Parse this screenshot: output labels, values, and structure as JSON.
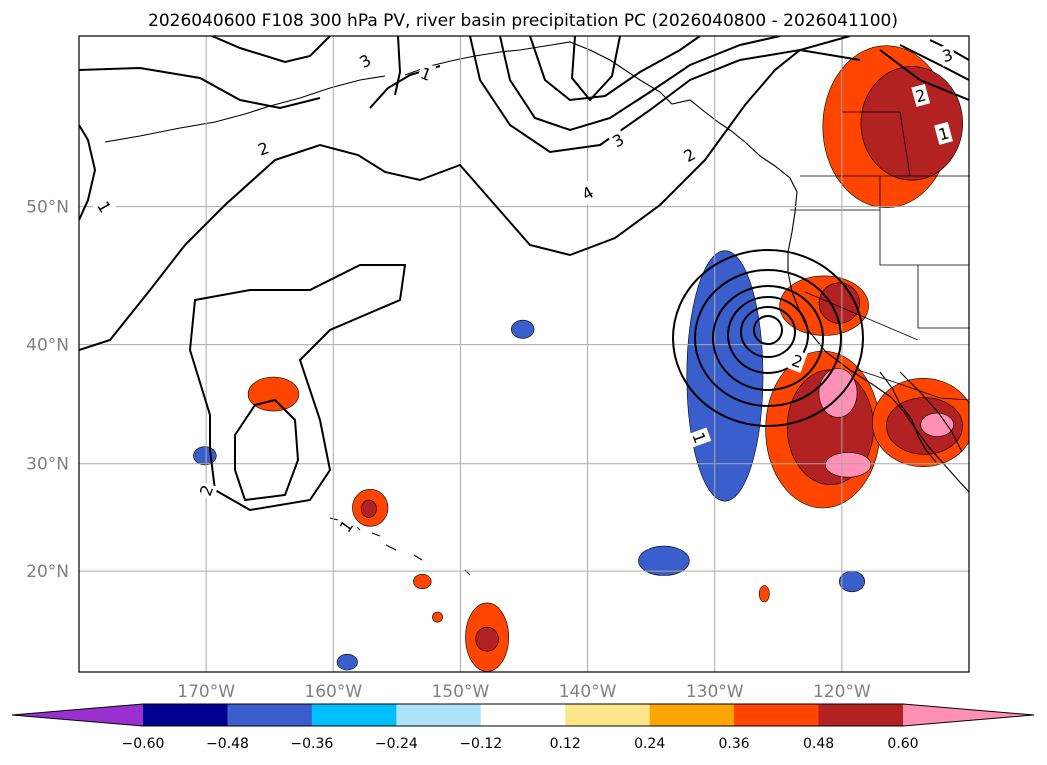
{
  "chart_data": {
    "type": "contour-map",
    "title": "2026040600 F108 300 hPa PV, river basin precipitation PC (2026040800 - 2026041100)",
    "projection": "mercator",
    "extent": {
      "lon": [
        -180,
        -110
      ],
      "lat": [
        10,
        60
      ]
    },
    "lon_ticks": [
      {
        "value": -170,
        "label": "170°W"
      },
      {
        "value": -160,
        "label": "160°W"
      },
      {
        "value": -150,
        "label": "150°W"
      },
      {
        "value": -140,
        "label": "140°W"
      },
      {
        "value": -130,
        "label": "130°W"
      },
      {
        "value": -120,
        "label": "120°W"
      }
    ],
    "lat_ticks": [
      {
        "value": 20,
        "label": "20°N"
      },
      {
        "value": 30,
        "label": "30°N"
      },
      {
        "value": 40,
        "label": "40°N"
      },
      {
        "value": 50,
        "label": "50°N"
      }
    ],
    "grid": true,
    "pv_contour_labels": [
      {
        "text": "1",
        "lon": -178.0,
        "lat": 50.0,
        "rot": 60
      },
      {
        "text": "2",
        "lon": -165.5,
        "lat": 53.7,
        "rot": -20
      },
      {
        "text": "3",
        "lon": -157.5,
        "lat": 58.7,
        "rot": -30
      },
      {
        "text": "1",
        "lon": -152.7,
        "lat": 58.0,
        "rot": 20
      },
      {
        "text": "3",
        "lon": -137.6,
        "lat": 54.2,
        "rot": -30
      },
      {
        "text": "4",
        "lon": -140.0,
        "lat": 50.9,
        "rot": -30
      },
      {
        "text": "2",
        "lon": -132.0,
        "lat": 53.3,
        "rot": -30
      },
      {
        "text": "2",
        "lon": -170.0,
        "lat": 27.6,
        "rot": -70
      },
      {
        "text": "1",
        "lon": -159.0,
        "lat": 24.3,
        "rot": -55
      },
      {
        "text": "1",
        "lon": -131.2,
        "lat": 32.3,
        "rot": 70
      },
      {
        "text": "2",
        "lon": -123.5,
        "lat": 38.7,
        "rot": 20
      },
      {
        "text": "2",
        "lon": -113.8,
        "lat": 56.8,
        "rot": -15
      },
      {
        "text": "1",
        "lon": -112.0,
        "lat": 54.6,
        "rot": -15
      },
      {
        "text": "3",
        "lon": -111.7,
        "lat": 59.0,
        "rot": -15
      }
    ],
    "precip_regions": [
      {
        "level": "neg060",
        "lon": -129.1,
        "lat": 36.6,
        "rlon": 0.4,
        "rlat": 0.7
      },
      {
        "level": "neg048",
        "lon": -128.9,
        "lat": 38.7,
        "rlon": 1.6,
        "rlat": 6.3
      },
      {
        "level": "neg036",
        "lon": -129.2,
        "lat": 37.5,
        "rlon": 3.0,
        "rlat": 9.5
      },
      {
        "level": "neg036",
        "lon": -170.1,
        "lat": 30.7,
        "rlon": 0.9,
        "rlat": 0.8
      },
      {
        "level": "neg036",
        "lon": -145.1,
        "lat": 41.2,
        "rlon": 0.9,
        "rlat": 0.7
      },
      {
        "level": "neg036",
        "lon": -134.0,
        "lat": 21.0,
        "rlon": 2.0,
        "rlat": 1.4
      },
      {
        "level": "neg036",
        "lon": -119.2,
        "lat": 19.0,
        "rlon": 1.0,
        "rlat": 1.0
      },
      {
        "level": "neg036",
        "lon": -158.9,
        "lat": 11.0,
        "rlon": 0.8,
        "rlat": 0.8
      },
      {
        "level": "pos036",
        "lon": -164.7,
        "lat": 36.0,
        "rlon": 2.0,
        "rlat": 1.4
      },
      {
        "level": "pos036",
        "lon": -157.1,
        "lat": 26.0,
        "rlon": 1.4,
        "rlat": 1.7
      },
      {
        "level": "pos048",
        "lon": -157.2,
        "lat": 25.9,
        "rlon": 0.6,
        "rlat": 0.8
      },
      {
        "level": "pos036",
        "lon": -153.0,
        "lat": 19.0,
        "rlon": 0.7,
        "rlat": 0.7
      },
      {
        "level": "pos036",
        "lon": -151.8,
        "lat": 15.5,
        "rlon": 0.4,
        "rlat": 0.5
      },
      {
        "level": "pos036",
        "lon": -147.9,
        "lat": 13.5,
        "rlon": 1.7,
        "rlat": 3.4
      },
      {
        "level": "pos048",
        "lon": -147.9,
        "lat": 13.3,
        "rlon": 0.9,
        "rlat": 1.2
      },
      {
        "level": "pos036",
        "lon": -126.1,
        "lat": 17.8,
        "rlon": 0.4,
        "rlat": 0.8
      },
      {
        "level": "pos036",
        "lon": -121.4,
        "lat": 43.0,
        "rlon": 3.5,
        "rlat": 2.2
      },
      {
        "level": "pos048",
        "lon": -120.2,
        "lat": 43.2,
        "rlon": 1.6,
        "rlat": 1.5
      },
      {
        "level": "pos036",
        "lon": -116.5,
        "lat": 55.0,
        "rlon": 5.0,
        "rlat": 4.5
      },
      {
        "level": "pos048",
        "lon": -114.5,
        "lat": 55.2,
        "rlon": 4.0,
        "rlat": 3.2
      },
      {
        "level": "pos036",
        "lon": -121.5,
        "lat": 33.0,
        "rlon": 4.5,
        "rlat": 6.5
      },
      {
        "level": "pos048",
        "lon": -120.9,
        "lat": 33.2,
        "rlon": 3.4,
        "rlat": 4.8
      },
      {
        "level": "pos060",
        "lon": -119.5,
        "lat": 29.9,
        "rlon": 1.8,
        "rlat": 1.1
      },
      {
        "level": "pos060",
        "lon": -120.3,
        "lat": 36.1,
        "rlon": 1.5,
        "rlat": 2.0
      },
      {
        "level": "pos036",
        "lon": -113.6,
        "lat": 33.6,
        "rlon": 4.0,
        "rlat": 3.7
      },
      {
        "level": "pos048",
        "lon": -113.5,
        "lat": 33.3,
        "rlon": 3.0,
        "rlat": 2.4
      },
      {
        "level": "pos060",
        "lon": -112.5,
        "lat": 33.4,
        "rlon": 1.3,
        "rlat": 1.0
      }
    ],
    "colorbar": {
      "extend": "both",
      "tick_labels": [
        "−0.60",
        "−0.48",
        "−0.36",
        "−0.24",
        "−0.12",
        "0.12",
        "0.24",
        "0.36",
        "0.48",
        "0.60"
      ],
      "bins": [
        "<-0.60",
        "-0.60–-0.48",
        "-0.48–-0.36",
        "-0.36–-0.24",
        "-0.24–-0.12",
        "-0.12–0.12",
        "0.12–0.24",
        "0.24–0.36",
        "0.36–0.48",
        "0.48–0.60",
        ">0.60"
      ],
      "colors": [
        "#9b30d0",
        "#000090",
        "#3a5fcd",
        "#00bfff",
        "#aee2fa",
        "#ffffff",
        "#fde68a",
        "#ffa500",
        "#ff4500",
        "#b22222",
        "#ff8fb4"
      ]
    },
    "level_colors": {
      "neg060": "#9b30d0",
      "neg048": "#000090",
      "neg036": "#3a5fcd",
      "pos036": "#ff4500",
      "pos048": "#b22222",
      "pos060": "#ff8fb4"
    }
  }
}
